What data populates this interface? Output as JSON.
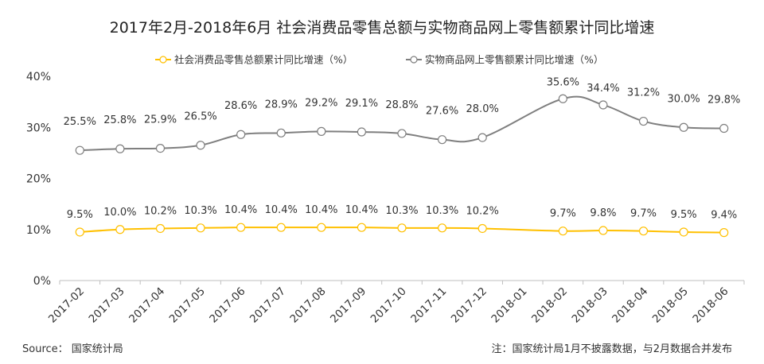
{
  "title": "2017年2月-2018年6月 社会消费品零售总额与实物商品网上零售额累计同比增速",
  "source": "Source： 国家统计局",
  "note": "注：国家统计局1月不披露数据，与2月数据合并发布",
  "chart_data": {
    "type": "line",
    "categories": [
      "2017-02",
      "2017-03",
      "2017-04",
      "2017-05",
      "2017-06",
      "2017-07",
      "2017-08",
      "2017-09",
      "2017-10",
      "2017-11",
      "2017-12",
      "2018-01",
      "2018-02",
      "2018-03",
      "2018-04",
      "2018-05",
      "2018-06"
    ],
    "ylim": [
      0,
      40
    ],
    "yticks": [
      "0%",
      "10%",
      "20%",
      "30%",
      "40%"
    ],
    "grid": false,
    "legend_position": "top",
    "series": [
      {
        "name": "社会消费品零售总额累计同比增速（%）",
        "color": "#FFC000",
        "values": [
          9.5,
          10.0,
          10.2,
          10.3,
          10.4,
          10.4,
          10.4,
          10.4,
          10.3,
          10.3,
          10.2,
          null,
          9.7,
          9.8,
          9.7,
          9.5,
          9.4
        ],
        "labels": [
          "9.5%",
          "10.0%",
          "10.2%",
          "10.3%",
          "10.4%",
          "10.4%",
          "10.4%",
          "10.4%",
          "10.3%",
          "10.3%",
          "10.2%",
          "",
          "9.7%",
          "9.8%",
          "9.7%",
          "9.5%",
          "9.4%"
        ]
      },
      {
        "name": "实物商品网上零售额累计同比增速（%）",
        "color": "#7F7F7F",
        "values": [
          25.5,
          25.8,
          25.9,
          26.5,
          28.6,
          28.9,
          29.2,
          29.1,
          28.8,
          27.6,
          28.0,
          null,
          35.6,
          34.4,
          31.2,
          30.0,
          29.8
        ],
        "labels": [
          "25.5%",
          "25.8%",
          "25.9%",
          "26.5%",
          "28.6%",
          "28.9%",
          "29.2%",
          "29.1%",
          "28.8%",
          "27.6%",
          "28.0%",
          "",
          "35.6%",
          "34.4%",
          "31.2%",
          "30.0%",
          "29.8%"
        ]
      }
    ]
  }
}
